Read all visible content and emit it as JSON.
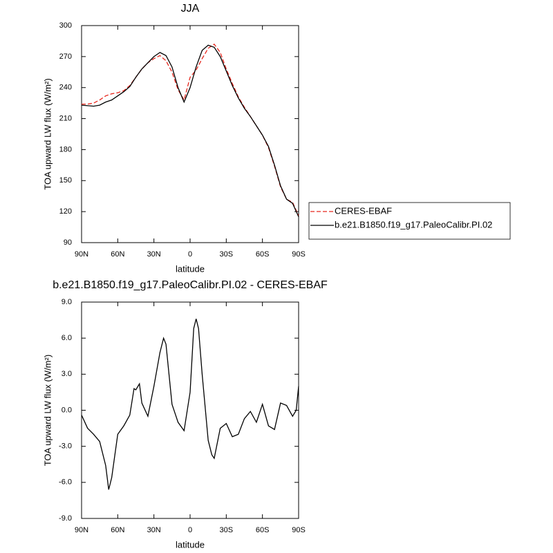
{
  "chart_data": [
    {
      "type": "line",
      "title": "JJA",
      "xlabel": "latitude",
      "ylabel": "TOA upward LW flux (W/m²)",
      "x": [
        90,
        85,
        80,
        75,
        70,
        65,
        60,
        55,
        50,
        45,
        40,
        35,
        30,
        25,
        20,
        15,
        10,
        5,
        0,
        -5,
        -10,
        -15,
        -20,
        -25,
        -30,
        -35,
        -40,
        -45,
        -50,
        -55,
        -60,
        -65,
        -70,
        -75,
        -80,
        -85,
        -90
      ],
      "series": [
        {
          "name": "CERES-EBAF",
          "color": "#e8261c",
          "style": "dashed",
          "values": [
            224,
            224,
            225,
            228,
            232,
            234,
            235,
            237,
            242,
            250,
            258,
            264,
            268,
            271,
            266,
            255,
            238,
            228,
            250,
            257,
            268,
            278,
            282,
            274,
            258,
            244,
            231,
            221,
            212,
            203,
            194,
            182,
            164,
            144,
            132,
            129,
            116
          ]
        },
        {
          "name": "b.e21.B1850.f19_g17.PaleoCalibr.PI.02",
          "color": "#000000",
          "style": "solid",
          "values": [
            223,
            222.5,
            222,
            223,
            226,
            228,
            232,
            236,
            241,
            250,
            258,
            264,
            270,
            274,
            271,
            260,
            240,
            226,
            240,
            260,
            276,
            281,
            279,
            270,
            256,
            242,
            230,
            220,
            212,
            203,
            194,
            183,
            165,
            145,
            132,
            128,
            115
          ]
        }
      ],
      "xlim": [
        90,
        -90
      ],
      "xticks": [
        {
          "value": 90,
          "label": "90N"
        },
        {
          "value": 60,
          "label": "60N"
        },
        {
          "value": 30,
          "label": "30N"
        },
        0,
        {
          "value": -30,
          "label": "30S"
        },
        {
          "value": -60,
          "label": "60S"
        },
        {
          "value": -90,
          "label": "90S"
        }
      ],
      "ylim": [
        90,
        300
      ],
      "yticks": [
        90,
        120,
        150,
        180,
        210,
        240,
        270,
        300
      ],
      "legend": "right"
    },
    {
      "type": "line",
      "title": "b.e21.B1850.f19_g17.PaleoCalibr.PI.02 - CERES-EBAF",
      "xlabel": "latitude",
      "ylabel": "TOA upward LW flux (W/m²)",
      "x": [
        90,
        85,
        80,
        75,
        70,
        67.5,
        65,
        60,
        55,
        50,
        46.5,
        45,
        42,
        40,
        35,
        30,
        25,
        22,
        20,
        15,
        10,
        5,
        0,
        -3,
        -5,
        -7,
        -10,
        -15,
        -18,
        -20,
        -25,
        -30,
        -35,
        -40,
        -45,
        -50,
        -55,
        -60,
        -65,
        -70,
        -75,
        -80,
        -85,
        -88,
        -90
      ],
      "series": [
        {
          "color": "#000000",
          "style": "solid",
          "values": [
            -0.4,
            -1.5,
            -2.0,
            -2.6,
            -4.6,
            -6.6,
            -5.6,
            -2.0,
            -1.3,
            -0.4,
            1.8,
            1.7,
            2.2,
            0.6,
            -0.5,
            2.0,
            4.8,
            6.0,
            5.5,
            0.5,
            -1.0,
            -1.7,
            1.5,
            6.8,
            7.6,
            6.8,
            3.0,
            -2.5,
            -3.7,
            -4.0,
            -1.5,
            -1.1,
            -2.2,
            -2.0,
            -0.7,
            -0.1,
            -1.0,
            0.5,
            -1.3,
            -1.6,
            0.6,
            0.4,
            -0.5,
            0.0,
            2.0
          ]
        }
      ],
      "xlim": [
        90,
        -90
      ],
      "xticks": [
        {
          "value": 90,
          "label": "90N"
        },
        {
          "value": 60,
          "label": "60N"
        },
        {
          "value": 30,
          "label": "30N"
        },
        0,
        {
          "value": -30,
          "label": "30S"
        },
        {
          "value": -60,
          "label": "60S"
        },
        {
          "value": -90,
          "label": "90S"
        }
      ],
      "ylim": [
        -9,
        9
      ],
      "yticks": [
        {
          "value": -9,
          "label": "-9.0"
        },
        {
          "value": -6,
          "label": "-6.0"
        },
        {
          "value": -3,
          "label": "-3.0"
        },
        {
          "value": 0,
          "label": "0.0"
        },
        {
          "value": 3,
          "label": "3.0"
        },
        {
          "value": 6,
          "label": "6.0"
        },
        {
          "value": 9,
          "label": "9.0"
        }
      ]
    }
  ]
}
